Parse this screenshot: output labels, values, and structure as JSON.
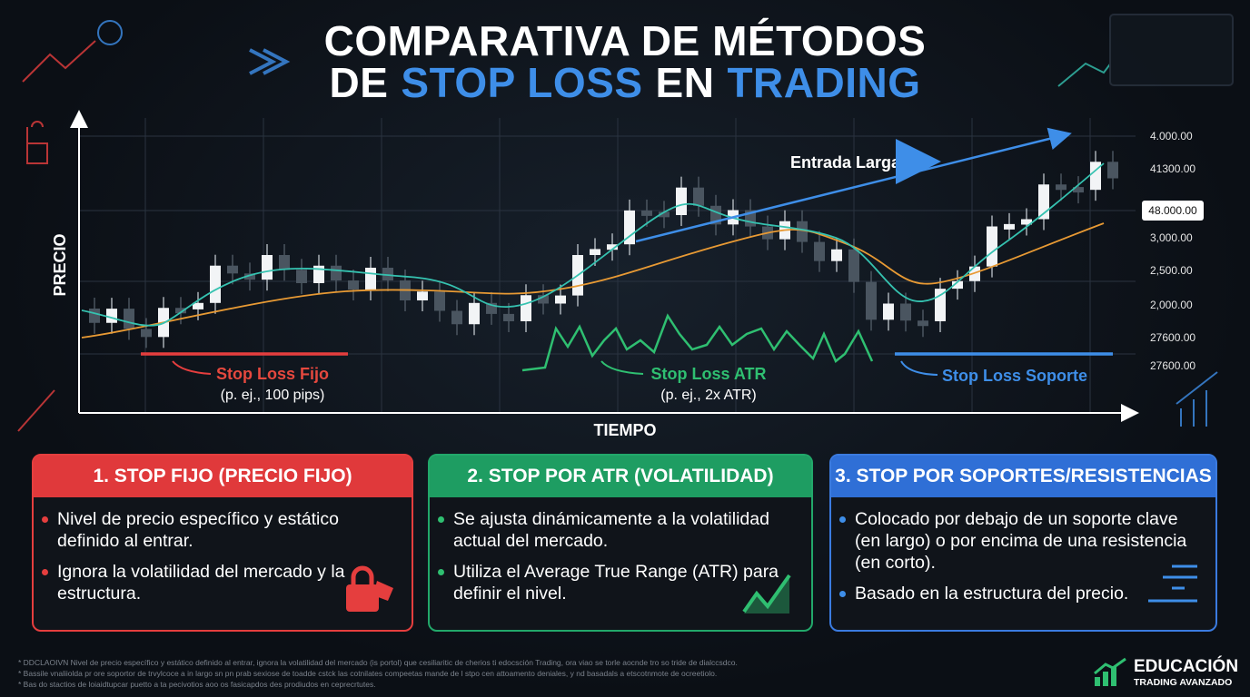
{
  "header": {
    "title_line1": "COMPARATIVA DE MÉTODOS",
    "title_de": "DE",
    "title_highlight1": "STOP LOSS",
    "title_en": "EN",
    "title_highlight2": "TRADING"
  },
  "chart": {
    "y_axis_label": "PRECIO",
    "x_axis_label": "TIEMPO",
    "price_labels": [
      "4.000.00",
      "41300.00",
      "3,000.00",
      "2,500.00",
      "2,000.00",
      "27600.00",
      "27600.00"
    ],
    "entry_marker": "48.000.00",
    "entry_label": "Entrada Larga",
    "annotations": [
      {
        "title": "Stop Loss Fijo",
        "note": "(p. ej., 100 pips)"
      },
      {
        "title": "Stop Loss ATR",
        "note": "(p. ej., 2x ATR)"
      },
      {
        "title": "Stop Loss Soporte"
      }
    ]
  },
  "cards": [
    {
      "title": "1. STOP FIJO (PRECIO FIJO)",
      "bullets": [
        "Nivel de precio específico y estático definido al entrar.",
        "Ignora la volatilidad del mercado y la estructura."
      ]
    },
    {
      "title": "2. STOP POR ATR (VOLATILIDAD)",
      "bullets": [
        "Se ajusta dinámicamente a la volatilidad actual del mercado.",
        "Utiliza el Average True Range (ATR) para definir el nivel."
      ]
    },
    {
      "title": "3. STOP POR SOPORTES/RESISTENCIAS",
      "bullets": [
        "Colocado por debajo de un soporte clave (en largo) o por encima de una resistencia (en corto).",
        "Basado en la estructura del precio."
      ]
    }
  ],
  "footnotes": [
    "* DDCLAOIVN Nivel de precio específico y estático definido al entrar, ignora la volatilidad del mercado (is portol) que cesiliaritic de cherios ti edocsción Trading, ora viao se torle aocnde tro so tride de dialccsdco.",
    "* Bassile vnaliiolda pr ore soportor de trvylcoce a in largo sn pn prab sexiose de toadde cstck las cotnilates compeetas mande de l stpo cen attoamento deniales, y nd basadals a etscotnmote de ocreetiolo.",
    "* Bas do stactios de loiaidtupcar puetto a ta pecivotios aoo os fasicapdos des prodiudos en ceprecrtutes."
  ],
  "brand": {
    "line1": "EDUCACIÓN",
    "line2": "TRADING AVANZADO"
  }
}
